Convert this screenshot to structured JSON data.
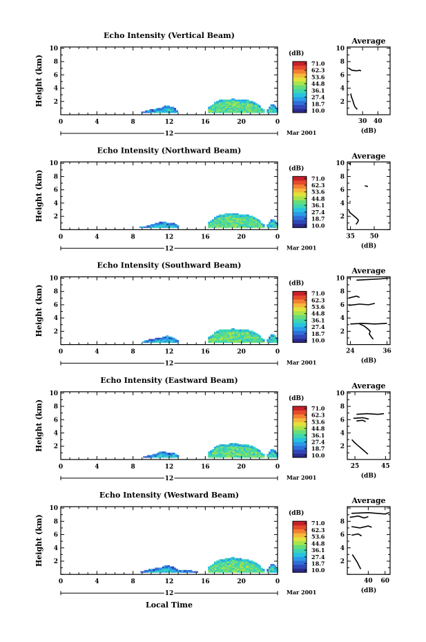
{
  "footer": {
    "xlabel": "Local Time"
  },
  "colorbar": {
    "unit": "(dB)",
    "ticks": [
      "71.0",
      "62.3",
      "53.6",
      "44.8",
      "36.1",
      "27.4",
      "18.7",
      "10.0"
    ],
    "colors": [
      "#2b2a8c",
      "#3047b8",
      "#2f6fd9",
      "#2a9be8",
      "#27c3e0",
      "#3ed6b0",
      "#66dd7a",
      "#a7e34c",
      "#e2e23a",
      "#f5b83a",
      "#f47f33",
      "#e44a2b",
      "#c8202a"
    ]
  },
  "panels": [
    {
      "title": "Echo Intensity (Vertical Beam)",
      "ylabel": "Height (km)",
      "date_label": "Mar 2001",
      "day_label": "12",
      "avg_title": "Average",
      "avg_xlabel": "(dB)",
      "chart_data": {
        "type": "heatmap",
        "x_ticks": [
          "0",
          "4",
          "8",
          "12",
          "16",
          "20",
          "0"
        ],
        "y_ticks": [
          "2",
          "4",
          "6",
          "8",
          "10"
        ],
        "xlim": [
          0,
          24
        ],
        "ylim": [
          0,
          10.2
        ],
        "clim": [
          10.0,
          71.0
        ],
        "echo_regions": [
          {
            "x": [
              8.9,
              9.6,
              10.3,
              11.0,
              11.6,
              12.3,
              12.8
            ],
            "top": [
              0.35,
              0.6,
              0.8,
              1.0,
              1.3,
              1.1,
              0.6
            ],
            "value": 30
          },
          {
            "x": [
              16.3,
              17.0,
              17.5,
              18.2,
              19.0,
              19.8,
              20.6,
              21.3,
              21.9,
              22.4
            ],
            "top": [
              1.1,
              1.8,
              2.1,
              2.2,
              2.3,
              2.2,
              2.1,
              1.9,
              1.3,
              0.6
            ],
            "value": 38
          },
          {
            "x": [
              22.8,
              23.2,
              23.6,
              24.0
            ],
            "top": [
              0.8,
              1.5,
              1.3,
              0.6
            ],
            "value": 34
          }
        ],
        "average": {
          "xlim": [
            20,
            48
          ],
          "x_ticks": [
            "30",
            "40"
          ],
          "y_ticks": [
            "2",
            "4",
            "6",
            "8",
            "10"
          ],
          "x": [
            26.5,
            25.0,
            24.3,
            23.8,
            23.5,
            23.2,
            22.8,
            22.6,
            22.4,
            22.3
          ],
          "y": [
            0.8,
            1.2,
            1.6,
            2.0,
            2.2,
            2.4,
            2.6,
            2.8,
            3.0,
            3.2
          ],
          "segments": [
            {
              "x": [
                21,
                23,
                26,
                28,
                29
              ],
              "y": [
                7.0,
                6.7,
                6.6,
                6.7,
                6.6
              ]
            }
          ]
        }
      }
    },
    {
      "title": "Echo Intensity (Northward Beam)",
      "ylabel": "Height (km)",
      "date_label": "Mar 2001",
      "day_label": "12",
      "avg_title": "Average",
      "avg_xlabel": "(dB)",
      "chart_data": {
        "type": "heatmap",
        "x_ticks": [
          "0",
          "4",
          "8",
          "12",
          "16",
          "20",
          "0"
        ],
        "y_ticks": [
          "2",
          "4",
          "6",
          "8",
          "10"
        ],
        "xlim": [
          0,
          24
        ],
        "ylim": [
          0,
          10.2
        ],
        "clim": [
          10.0,
          71.0
        ],
        "echo_regions": [
          {
            "x": [
              8.7,
              9.5,
              10.2,
              11.0,
              11.7,
              12.4,
              12.9
            ],
            "top": [
              0.35,
              0.5,
              0.8,
              1.1,
              1.0,
              0.9,
              0.5
            ],
            "value": 30
          },
          {
            "x": [
              16.3,
              17.0,
              17.5,
              18.2,
              19.0,
              19.8,
              20.6,
              21.3,
              21.9,
              22.4
            ],
            "top": [
              1.1,
              1.8,
              2.1,
              2.3,
              2.4,
              2.2,
              2.1,
              1.9,
              1.3,
              0.6
            ],
            "value": 38
          },
          {
            "x": [
              22.8,
              23.2,
              23.6,
              24.0
            ],
            "top": [
              0.8,
              1.5,
              1.3,
              0.6
            ],
            "value": 34
          }
        ],
        "average": {
          "xlim": [
            33,
            60
          ],
          "x_ticks": [
            "35",
            "50"
          ],
          "y_ticks": [
            "2",
            "4",
            "6",
            "8",
            "10"
          ],
          "x": [
            38.5,
            39.5,
            40.0,
            39.0,
            37.5,
            36.0,
            34.5,
            34.0
          ],
          "y": [
            0.8,
            1.1,
            1.4,
            1.7,
            2.0,
            2.3,
            2.6,
            2.9
          ],
          "segments": [
            {
              "x": [
                34,
                35
              ],
              "y": [
                10.0,
                9.8
              ]
            },
            {
              "x": [
                44,
                46
              ],
              "y": [
                6.6,
                6.5
              ]
            },
            {
              "x": [
                34.5,
                35
              ],
              "y": [
                4.3,
                4.2
              ]
            }
          ]
        }
      }
    },
    {
      "title": "Echo Intensity (Southward Beam)",
      "ylabel": "Height (km)",
      "date_label": "Mar 2001",
      "day_label": "12",
      "avg_title": "Average",
      "avg_xlabel": "(dB)",
      "chart_data": {
        "type": "heatmap",
        "x_ticks": [
          "0",
          "4",
          "8",
          "12",
          "16",
          "20",
          "0"
        ],
        "y_ticks": [
          "2",
          "4",
          "6",
          "8",
          "10"
        ],
        "xlim": [
          0,
          24
        ],
        "ylim": [
          0,
          10.2
        ],
        "clim": [
          10.0,
          71.0
        ],
        "echo_regions": [
          {
            "x": [
              8.8,
              9.5,
              10.2,
              11.0,
              11.7,
              12.4,
              12.9
            ],
            "top": [
              0.3,
              0.6,
              0.8,
              1.0,
              1.3,
              0.9,
              0.5
            ],
            "value": 30
          },
          {
            "x": [
              16.3,
              17.0,
              17.5,
              18.2,
              19.0,
              19.8,
              20.6,
              21.3,
              21.9,
              22.4
            ],
            "top": [
              1.1,
              1.8,
              2.1,
              2.2,
              2.3,
              2.2,
              2.1,
              1.9,
              1.3,
              0.6
            ],
            "value": 38
          },
          {
            "x": [
              22.8,
              23.2,
              23.6,
              24.0
            ],
            "top": [
              0.8,
              1.5,
              1.3,
              0.6
            ],
            "value": 34
          }
        ],
        "average": {
          "xlim": [
            23,
            37
          ],
          "x_ticks": [
            "24",
            "36"
          ],
          "y_ticks": [
            "2",
            "4",
            "6",
            "8",
            "10"
          ],
          "x": [
            31.5,
            30.8,
            30.2,
            30.5,
            29.6,
            28.5,
            27.0
          ],
          "y": [
            0.8,
            1.2,
            1.6,
            2.0,
            2.4,
            2.8,
            3.1
          ],
          "segments": [
            {
              "x": [
                24,
                28,
                32,
                36
              ],
              "y": [
                3.1,
                3.2,
                3.1,
                3.2
              ]
            },
            {
              "x": [
                23.5,
                27,
                30,
                32
              ],
              "y": [
                5.9,
                6.1,
                6.0,
                6.2
              ]
            },
            {
              "x": [
                23.5,
                26,
                27
              ],
              "y": [
                7.0,
                7.3,
                7.1
              ]
            },
            {
              "x": [
                26,
                30,
                34,
                36
              ],
              "y": [
                9.7,
                9.8,
                9.9,
                10.0
              ]
            }
          ]
        }
      }
    },
    {
      "title": "Echo Intensity (Eastward Beam)",
      "ylabel": "Height (km)",
      "date_label": "Mar 2001",
      "day_label": "12",
      "avg_title": "Average",
      "avg_xlabel": "(dB)",
      "chart_data": {
        "type": "heatmap",
        "x_ticks": [
          "0",
          "4",
          "8",
          "12",
          "16",
          "20",
          "0"
        ],
        "y_ticks": [
          "2",
          "4",
          "6",
          "8",
          "10"
        ],
        "xlim": [
          0,
          24
        ],
        "ylim": [
          0,
          10.2
        ],
        "clim": [
          10.0,
          71.0
        ],
        "echo_regions": [
          {
            "x": [
              9.1,
              9.7,
              10.4,
              11.0,
              11.7,
              12.4,
              12.9
            ],
            "top": [
              0.35,
              0.55,
              0.8,
              1.1,
              1.0,
              0.9,
              0.5
            ],
            "value": 30
          },
          {
            "x": [
              16.3,
              17.0,
              17.5,
              18.2,
              19.0,
              19.8,
              20.6,
              21.3,
              21.9,
              22.4
            ],
            "top": [
              1.1,
              1.8,
              2.1,
              2.2,
              2.4,
              2.2,
              2.1,
              1.9,
              1.3,
              0.6
            ],
            "value": 38
          },
          {
            "x": [
              22.8,
              23.2,
              23.6,
              24.0
            ],
            "top": [
              0.8,
              1.5,
              1.3,
              0.6
            ],
            "value": 34
          }
        ],
        "average": {
          "xlim": [
            20,
            48
          ],
          "x_ticks": [
            "25",
            "45"
          ],
          "y_ticks": [
            "2",
            "4",
            "6",
            "8",
            "10"
          ],
          "x": [
            33.5,
            32.0,
            30.5,
            28.5,
            26.5,
            24.5,
            23.0
          ],
          "y": [
            0.8,
            1.1,
            1.4,
            1.8,
            2.2,
            2.6,
            3.0
          ],
          "segments": [
            {
              "x": [
                26,
                33,
                40,
                44
              ],
              "y": [
                6.8,
                6.9,
                6.8,
                6.9
              ]
            },
            {
              "x": [
                24,
                30,
                34
              ],
              "y": [
                6.2,
                6.3,
                6.1
              ]
            },
            {
              "x": [
                26,
                30,
                32
              ],
              "y": [
                5.8,
                5.9,
                5.7
              ]
            }
          ]
        }
      }
    },
    {
      "title": "Echo Intensity (Westward Beam)",
      "ylabel": "Height (km)",
      "date_label": "Mar 2001",
      "day_label": "12",
      "avg_title": "Average",
      "avg_xlabel": "(dB)",
      "chart_data": {
        "type": "heatmap",
        "x_ticks": [
          "0",
          "4",
          "8",
          "12",
          "16",
          "20",
          "0"
        ],
        "y_ticks": [
          "2",
          "4",
          "6",
          "8",
          "10"
        ],
        "xlim": [
          0,
          24
        ],
        "ylim": [
          0,
          10.2
        ],
        "clim": [
          10.0,
          71.0
        ],
        "echo_regions": [
          {
            "x": [
              8.8,
              9.5,
              10.2,
              11.0,
              11.6,
              12.3,
              12.9,
              13.6,
              14.3,
              15.0
            ],
            "top": [
              0.35,
              0.6,
              0.8,
              1.0,
              1.3,
              1.1,
              0.6,
              0.5,
              0.5,
              0.4
            ],
            "value": 30
          },
          {
            "x": [
              16.3,
              17.0,
              17.5,
              18.2,
              19.0,
              19.8,
              20.6,
              21.3,
              21.9,
              22.4
            ],
            "top": [
              1.1,
              1.8,
              2.1,
              2.3,
              2.5,
              2.3,
              2.1,
              1.9,
              1.3,
              0.6
            ],
            "value": 38
          },
          {
            "x": [
              22.8,
              23.2,
              23.6,
              24.0
            ],
            "top": [
              0.8,
              1.5,
              1.3,
              0.6
            ],
            "value": 34
          }
        ],
        "average": {
          "xlim": [
            15,
            66
          ],
          "x_ticks": [
            "40",
            "60"
          ],
          "y_ticks": [
            "2",
            "4",
            "6",
            "8"
          ],
          "x": [
            31.0,
            29.0,
            27.0,
            25.0,
            23.0,
            21.0
          ],
          "y": [
            0.8,
            1.3,
            1.8,
            2.2,
            2.6,
            3.0
          ],
          "segments": [
            {
              "x": [
                20,
                40,
                60,
                65
              ],
              "y": [
                9.2,
                9.3,
                9.1,
                9.3
              ]
            },
            {
              "x": [
                18,
                28,
                35,
                40
              ],
              "y": [
                8.6,
                8.8,
                8.5,
                8.7
              ]
            },
            {
              "x": [
                20,
                30,
                40,
                44
              ],
              "y": [
                7.2,
                7.0,
                7.3,
                7.1
              ]
            },
            {
              "x": [
                20,
                28,
                32
              ],
              "y": [
                5.9,
                6.1,
                5.8
              ]
            }
          ]
        }
      }
    }
  ]
}
